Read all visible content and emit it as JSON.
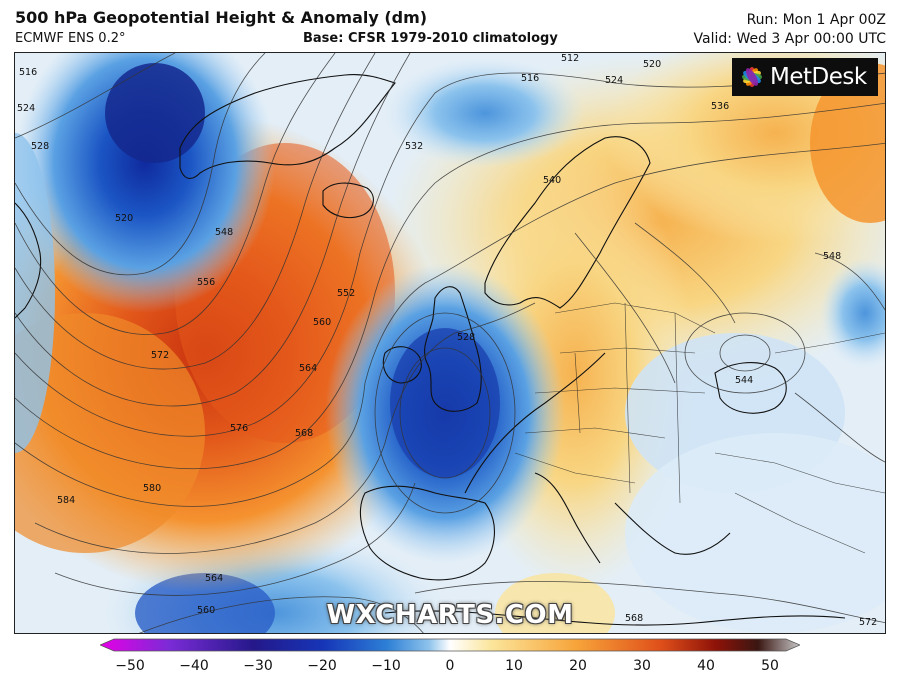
{
  "header": {
    "title": "500 hPa Geopotential Height & Anomaly (dm)",
    "model": "ECMWF ENS 0.2°",
    "base": "Base: CFSR 1979-2010 climatology",
    "run": "Run: Mon 1 Apr 00Z",
    "valid": "Valid: Wed 3 Apr 00:00 UTC"
  },
  "brand": {
    "logo_text": "MetDesk",
    "watermark": "WXCHARTS.COM"
  },
  "contour_labels": [
    "516",
    "524",
    "528",
    "520",
    "548",
    "556",
    "560",
    "552",
    "572",
    "564",
    "568",
    "576",
    "580",
    "584",
    "560",
    "564",
    "528",
    "532",
    "540",
    "536",
    "544",
    "548",
    "516",
    "520",
    "524",
    "512",
    "568",
    "572"
  ],
  "colorbar": {
    "ticks": [
      "−50",
      "−40",
      "−30",
      "−20",
      "−10",
      "0",
      "10",
      "20",
      "30",
      "40",
      "50"
    ],
    "colors": [
      "#e600e6",
      "#7a2bd6",
      "#24188a",
      "#1636b8",
      "#2d7fd6",
      "#8ec3ec",
      "#ffffff",
      "#fbe59a",
      "#f7a43a",
      "#e0501a",
      "#8e1208",
      "#3a1612",
      "#c8c8c8"
    ]
  }
}
